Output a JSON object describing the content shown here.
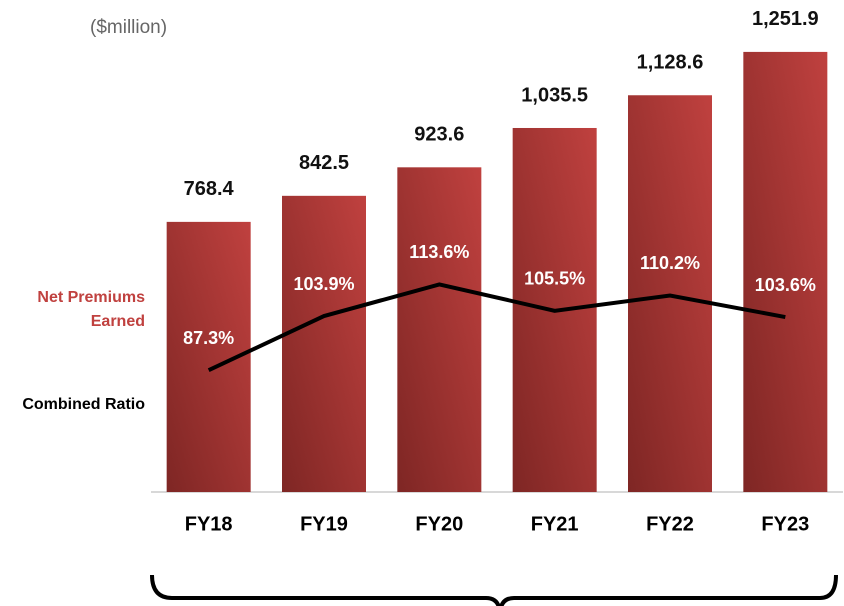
{
  "chart_data": {
    "type": "bar",
    "subtitle": "($million)",
    "categories": [
      "FY18",
      "FY19",
      "FY20",
      "FY21",
      "FY22",
      "FY23"
    ],
    "series": [
      {
        "name": "Net Premiums Earned",
        "color": "#c0413f",
        "type": "bar",
        "values": [
          768.4,
          842.5,
          923.6,
          1035.5,
          1128.6,
          1251.9
        ],
        "value_labels": [
          "768.4",
          "842.5",
          "923.6",
          "1,035.5",
          "1,128.6",
          "1,251.9"
        ]
      },
      {
        "name": "Combined Ratio",
        "color": "#000000",
        "type": "line",
        "axis": "y2",
        "values": [
          87.3,
          103.9,
          113.6,
          105.5,
          110.2,
          103.6
        ],
        "value_labels": [
          "87.3%",
          "103.9%",
          "113.6%",
          "105.5%",
          "110.2%",
          "103.6%"
        ]
      }
    ],
    "ylim": [
      0,
      1300
    ],
    "y2lim": [
      50,
      190
    ]
  }
}
